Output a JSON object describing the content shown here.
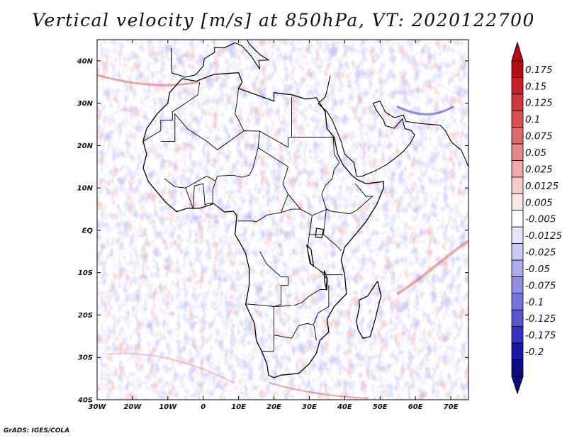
{
  "title": "Vertical velocity [m/s] at 850hPa, VT: 2020122700",
  "credit": "GrADS: IGES/COLA",
  "map": {
    "region": "Africa",
    "field": "vertical velocity",
    "level": "850hPa",
    "lon_range": [
      -30,
      75
    ],
    "lat_range": [
      -40,
      45
    ],
    "lon_ticks": [
      {
        "value": -30,
        "label": "30W"
      },
      {
        "value": -20,
        "label": "20W"
      },
      {
        "value": -10,
        "label": "10W"
      },
      {
        "value": 0,
        "label": "0"
      },
      {
        "value": 10,
        "label": "10E"
      },
      {
        "value": 20,
        "label": "20E"
      },
      {
        "value": 30,
        "label": "30E"
      },
      {
        "value": 40,
        "label": "40E"
      },
      {
        "value": 50,
        "label": "50E"
      },
      {
        "value": 60,
        "label": "60E"
      },
      {
        "value": 70,
        "label": "70E"
      }
    ],
    "lat_ticks": [
      {
        "value": 40,
        "label": "40N"
      },
      {
        "value": 30,
        "label": "30N"
      },
      {
        "value": 20,
        "label": "20N"
      },
      {
        "value": 10,
        "label": "10N"
      },
      {
        "value": 0,
        "label": "EQ"
      },
      {
        "value": -10,
        "label": "10S"
      },
      {
        "value": -20,
        "label": "20S"
      },
      {
        "value": -30,
        "label": "30S"
      },
      {
        "value": -40,
        "label": "40S"
      }
    ],
    "africa_outline_lonlat": [
      [
        -17,
        21
      ],
      [
        -16,
        24
      ],
      [
        -13,
        27.5
      ],
      [
        -10,
        30
      ],
      [
        -9.5,
        32.5
      ],
      [
        -6,
        35.8
      ],
      [
        -2,
        35.2
      ],
      [
        3,
        36.8
      ],
      [
        10,
        37.2
      ],
      [
        11,
        35
      ],
      [
        10,
        33.5
      ],
      [
        15,
        32
      ],
      [
        20,
        30.5
      ],
      [
        20,
        32.5
      ],
      [
        25,
        32
      ],
      [
        29,
        31
      ],
      [
        32,
        31.3
      ],
      [
        34.5,
        28
      ],
      [
        35,
        24
      ],
      [
        37,
        22
      ],
      [
        38,
        18
      ],
      [
        39.5,
        15.5
      ],
      [
        42,
        13
      ],
      [
        43.5,
        12
      ],
      [
        46,
        11
      ],
      [
        51,
        11.5
      ],
      [
        51,
        10
      ],
      [
        49,
        6
      ],
      [
        46,
        2
      ],
      [
        42,
        -2
      ],
      [
        40,
        -4
      ],
      [
        39,
        -7
      ],
      [
        40,
        -10.5
      ],
      [
        40.5,
        -15
      ],
      [
        37,
        -18
      ],
      [
        35,
        -21
      ],
      [
        35.5,
        -24
      ],
      [
        33,
        -26
      ],
      [
        32,
        -29
      ],
      [
        30,
        -31.5
      ],
      [
        27,
        -33.8
      ],
      [
        22,
        -34.2
      ],
      [
        20,
        -34.8
      ],
      [
        18.5,
        -34.2
      ],
      [
        18,
        -31.5
      ],
      [
        16.5,
        -28.5
      ],
      [
        15,
        -26
      ],
      [
        14.5,
        -22
      ],
      [
        12,
        -17.5
      ],
      [
        13,
        -13
      ],
      [
        13,
        -9
      ],
      [
        12,
        -5.5
      ],
      [
        11,
        -3.8
      ],
      [
        9,
        -1
      ],
      [
        9.5,
        3.5
      ],
      [
        8.5,
        4.5
      ],
      [
        6,
        4.3
      ],
      [
        3,
        6.3
      ],
      [
        -1,
        5.2
      ],
      [
        -4.5,
        5.2
      ],
      [
        -7.5,
        4.4
      ],
      [
        -10.5,
        6.5
      ],
      [
        -13.5,
        9.5
      ],
      [
        -15.5,
        11.5
      ],
      [
        -17,
        14.7
      ],
      [
        -16,
        18
      ],
      [
        -17,
        21
      ]
    ],
    "madagascar_outline_lonlat": [
      [
        49.3,
        -12
      ],
      [
        50.3,
        -15.5
      ],
      [
        49.8,
        -17
      ],
      [
        48.8,
        -20.5
      ],
      [
        47.2,
        -25.1
      ],
      [
        45.2,
        -25.5
      ],
      [
        43.8,
        -23.5
      ],
      [
        43.3,
        -21.5
      ],
      [
        44.2,
        -18
      ],
      [
        44,
        -16.5
      ],
      [
        46.5,
        -15.5
      ],
      [
        49.3,
        -12
      ]
    ],
    "europe_coast_lonlat": [
      [
        -9,
        43
      ],
      [
        -9,
        39
      ],
      [
        -8.8,
        37.1
      ],
      [
        -6.3,
        36.5
      ],
      [
        -5.4,
        36.1
      ],
      [
        -2.1,
        36.7
      ],
      [
        0,
        38.8
      ],
      [
        0.3,
        40.5
      ],
      [
        3.2,
        42
      ],
      [
        3.2,
        43.2
      ],
      [
        6,
        43.1
      ],
      [
        9,
        44.3
      ],
      [
        11,
        43.5
      ],
      [
        13.5,
        41.2
      ],
      [
        16,
        38
      ],
      [
        15.7,
        40.1
      ],
      [
        18.5,
        40.2
      ],
      [
        16,
        41.5
      ],
      [
        13,
        44
      ],
      [
        12.4,
        45
      ]
    ],
    "middle_east_coast_lonlat": [
      [
        35.9,
        36.5
      ],
      [
        35,
        33
      ],
      [
        34.5,
        31.5
      ],
      [
        32.5,
        29.9
      ],
      [
        35,
        28
      ],
      [
        36.5,
        26
      ],
      [
        38,
        23
      ],
      [
        39,
        21
      ],
      [
        40,
        18
      ],
      [
        42.6,
        16
      ],
      [
        43.4,
        12.7
      ],
      [
        45,
        12.8
      ],
      [
        48.5,
        14
      ],
      [
        52,
        15.6
      ],
      [
        55,
        17.5
      ],
      [
        56.8,
        18.8
      ],
      [
        58.5,
        20.5
      ],
      [
        59.8,
        22.5
      ],
      [
        58.7,
        23.6
      ],
      [
        57,
        24
      ],
      [
        56.3,
        26.3
      ],
      [
        54,
        24.1
      ],
      [
        51.5,
        24.7
      ],
      [
        51,
        26
      ],
      [
        49,
        28.3
      ],
      [
        48,
        30
      ],
      [
        50,
        30.5
      ],
      [
        51.5,
        27.9
      ],
      [
        54,
        26.6
      ],
      [
        56.6,
        27.2
      ],
      [
        57.3,
        25.7
      ],
      [
        61.5,
        25.2
      ],
      [
        67,
        24.8
      ],
      [
        68.4,
        23.6
      ],
      [
        70.2,
        20.8
      ],
      [
        72.9,
        19
      ],
      [
        74,
        17
      ],
      [
        75,
        15
      ]
    ],
    "inland_lines_lonlat": [
      [
        [
          -12,
          21
        ],
        [
          -8,
          21
        ],
        [
          -8,
          27.5
        ],
        [
          -4.5,
          24
        ],
        [
          1,
          21
        ],
        [
          4,
          19
        ],
        [
          11.5,
          23.5
        ],
        [
          16,
          23.4
        ],
        [
          24,
          19.6
        ],
        [
          24,
          21.8
        ],
        [
          25,
          22
        ],
        [
          36.8,
          22
        ]
      ],
      [
        [
          25,
          22
        ],
        [
          25,
          31.5
        ]
      ],
      [
        [
          10,
          33.5
        ],
        [
          9.5,
          30
        ],
        [
          9,
          27.5
        ],
        [
          9.7,
          26.5
        ],
        [
          11.5,
          23.5
        ]
      ],
      [
        [
          -1,
          35
        ],
        [
          -1.5,
          32
        ],
        [
          -5,
          30
        ],
        [
          -8.7,
          28
        ],
        [
          -8.7,
          26
        ],
        [
          -12,
          26
        ],
        [
          -12,
          23.5
        ],
        [
          -17,
          21
        ]
      ],
      [
        [
          16,
          23.4
        ],
        [
          15.5,
          19.5
        ],
        [
          14,
          14.5
        ],
        [
          13,
          13
        ],
        [
          11,
          12.5
        ],
        [
          8.5,
          13
        ],
        [
          4,
          12.8
        ],
        [
          3.5,
          11.6
        ],
        [
          1,
          12.8
        ],
        [
          -5,
          10
        ],
        [
          -8,
          10.3
        ],
        [
          -11,
          12.2
        ]
      ],
      [
        [
          15.5,
          19.5
        ],
        [
          24,
          15
        ],
        [
          22.5,
          11
        ],
        [
          24,
          8.5
        ],
        [
          27.5,
          5
        ],
        [
          30.8,
          3.5
        ],
        [
          35,
          5
        ],
        [
          36,
          4.5
        ],
        [
          41.5,
          3.9
        ],
        [
          43.5,
          4.8
        ],
        [
          47.8,
          8
        ],
        [
          46,
          8
        ],
        [
          43,
          11
        ]
      ],
      [
        [
          36.8,
          22
        ],
        [
          37,
          18
        ],
        [
          38.5,
          16
        ],
        [
          37,
          14.3
        ],
        [
          36.5,
          12.2
        ],
        [
          34.5,
          10.5
        ],
        [
          33.5,
          8.5
        ],
        [
          34.8,
          5
        ],
        [
          36,
          4.5
        ]
      ],
      [
        [
          24,
          8.5
        ],
        [
          22,
          4.2
        ],
        [
          18,
          3.6
        ],
        [
          15,
          2
        ],
        [
          14,
          2.2
        ],
        [
          11.3,
          2.2
        ],
        [
          9.8,
          2.2
        ]
      ],
      [
        [
          22,
          4.2
        ],
        [
          25,
          5
        ],
        [
          27.5,
          5
        ]
      ],
      [
        [
          16,
          -5
        ],
        [
          18,
          -8
        ],
        [
          22,
          -11
        ],
        [
          24,
          -11
        ],
        [
          24,
          -13
        ],
        [
          22,
          -13
        ],
        [
          22,
          -17.5
        ],
        [
          20,
          -18
        ],
        [
          20,
          -22
        ],
        [
          20,
          -24.7
        ],
        [
          25,
          -25.5
        ],
        [
          27,
          -22.5
        ],
        [
          29.5,
          -22
        ],
        [
          31.3,
          -22.4
        ],
        [
          32,
          -26
        ]
      ],
      [
        [
          30.8,
          3.5
        ],
        [
          30,
          -1
        ],
        [
          29.5,
          -4.5
        ],
        [
          30.5,
          -8
        ],
        [
          33,
          -9.5
        ],
        [
          35,
          -11.5
        ],
        [
          34.7,
          -14
        ],
        [
          33,
          -14
        ],
        [
          30,
          -15.5
        ],
        [
          28,
          -17
        ],
        [
          25.5,
          -17.8
        ]
      ],
      [
        [
          34,
          -1
        ],
        [
          37.5,
          -3.5
        ],
        [
          39,
          -4.8
        ]
      ],
      [
        [
          30,
          -1
        ],
        [
          34,
          -1
        ],
        [
          34.8,
          5
        ]
      ],
      [
        [
          33,
          -9.5
        ],
        [
          35,
          -10.5
        ],
        [
          39.5,
          -10.5
        ]
      ],
      [
        [
          35.5,
          -13
        ],
        [
          35.5,
          -18
        ],
        [
          32.5,
          -19.5
        ],
        [
          31.2,
          -22.2
        ]
      ],
      [
        [
          12,
          -17.4
        ],
        [
          14,
          -17.5
        ],
        [
          20,
          -18
        ],
        [
          25,
          -17.8
        ]
      ],
      [
        [
          20,
          -24.7
        ],
        [
          20,
          -28.6
        ],
        [
          16.5,
          -28.5
        ]
      ],
      [
        [
          -5,
          10
        ],
        [
          -2.8,
          5
        ],
        [
          -2.5,
          10.5
        ],
        [
          0,
          11
        ],
        [
          0.5,
          6
        ],
        [
          1.2,
          6.3
        ],
        [
          2.7,
          6.4
        ],
        [
          2.7,
          9.7
        ],
        [
          3.6,
          11.7
        ]
      ]
    ],
    "lakes_lonlat": [
      [
        [
          32,
          0.5
        ],
        [
          34,
          0.2
        ],
        [
          33.5,
          -1.8
        ],
        [
          31.8,
          -1.6
        ]
      ],
      [
        [
          29.3,
          -3.5
        ],
        [
          30.5,
          -4.5
        ],
        [
          31.2,
          -8.5
        ],
        [
          30.2,
          -7.8
        ]
      ],
      [
        [
          34.2,
          -9.5
        ],
        [
          35.1,
          -11.5
        ],
        [
          34.9,
          -14.2
        ],
        [
          34.3,
          -12
        ]
      ]
    ]
  },
  "colorbar": {
    "labels": [
      "0.175",
      "0.15",
      "0.125",
      "0.1",
      "0.075",
      "0.05",
      "0.025",
      "0.0125",
      "0.005",
      "-0.005",
      "-0.0125",
      "-0.025",
      "-0.05",
      "-0.075",
      "-0.1",
      "-0.125",
      "-0.175",
      "-0.2"
    ],
    "colors": [
      "#b80a14",
      "#c72026",
      "#d13838",
      "#d95050",
      "#e06a6a",
      "#e88888",
      "#f0a8a8",
      "#f7caca",
      "#fbe6e6",
      "#ffffff",
      "#e6e6fb",
      "#cacaf6",
      "#acacee",
      "#8e8ee6",
      "#7474de",
      "#5656d2",
      "#3434c2",
      "#1818aa",
      "#0a0a82"
    ]
  }
}
